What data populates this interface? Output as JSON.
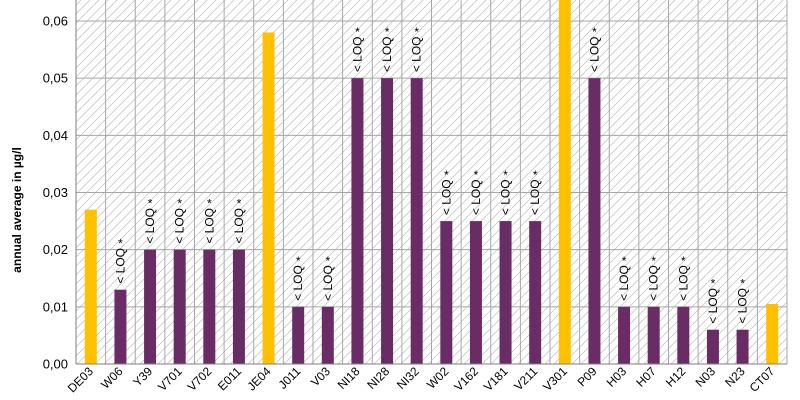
{
  "chart_data": {
    "type": "bar",
    "title": "",
    "xlabel": "",
    "ylabel": "annual average in µg/l",
    "ylim": [
      0,
      0.065
    ],
    "yticks": [
      "0,00",
      "0,01",
      "0,02",
      "0,03",
      "0,04",
      "0,05",
      "0,06"
    ],
    "grid": true,
    "categories": [
      "DE03",
      "W06",
      "Y39",
      "V701",
      "V702",
      "E011",
      "JE04",
      "J011",
      "V03",
      "NI18",
      "NI28",
      "NI32",
      "W02",
      "V162",
      "V181",
      "V211",
      "V301",
      "P09",
      "H03",
      "H07",
      "H12",
      "N03",
      "N23",
      "CT07"
    ],
    "values": [
      0.027,
      0.013,
      0.02,
      0.02,
      0.02,
      0.02,
      0.058,
      0.01,
      0.01,
      0.05,
      0.05,
      0.05,
      0.025,
      0.025,
      0.025,
      0.025,
      0.065,
      0.05,
      0.01,
      0.01,
      0.01,
      0.006,
      0.006,
      0.0105
    ],
    "loq_flags": [
      false,
      true,
      true,
      true,
      true,
      true,
      false,
      true,
      true,
      true,
      true,
      true,
      true,
      true,
      true,
      true,
      false,
      true,
      true,
      true,
      true,
      true,
      true,
      false
    ],
    "loq_text": "< LOQ",
    "loq_marker": "*",
    "colors": {
      "measured": "#FFC000",
      "below_loq": "#6A2C65",
      "grid": "#BFBFBF"
    }
  }
}
